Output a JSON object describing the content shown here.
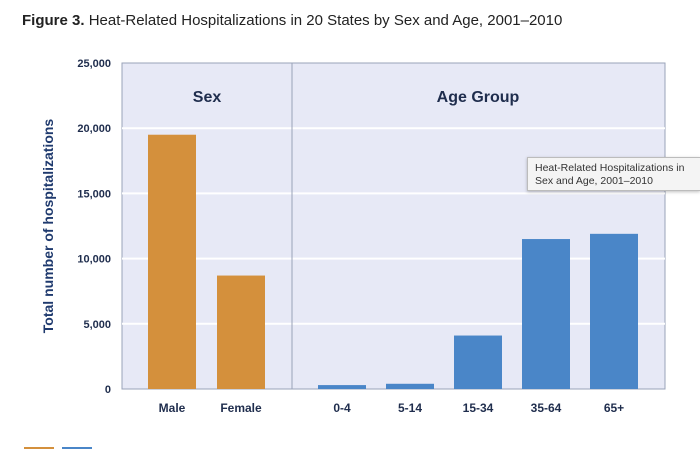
{
  "figure": {
    "label": "Figure 3.",
    "title": "Heat-Related Hospitalizations in 20 States by Sex and Age, 2001–2010"
  },
  "tooltip": {
    "line1": "Heat-Related Hospitalizations in",
    "line2": "Sex and Age, 2001–2010"
  },
  "colors": {
    "sex_bars": "#d4903c",
    "age_bars": "#4a86c8",
    "plot_background": "#e7e9f6",
    "gridline": "#ffffff",
    "panel_border": "#9aa3b8"
  },
  "chart_data": {
    "type": "bar",
    "ylabel": "Total number of hospitalizations",
    "ylim": [
      0,
      25000
    ],
    "y_ticks": [
      0,
      5000,
      10000,
      15000,
      20000,
      25000
    ],
    "y_tick_labels": [
      "0",
      "5,000",
      "10,000",
      "15,000",
      "20,000",
      "25,000"
    ],
    "grid": true,
    "panels": [
      {
        "title": "Sex",
        "categories": [
          "Male",
          "Female"
        ],
        "values": [
          19500,
          8700
        ],
        "color": "#d4903c"
      },
      {
        "title": "Age Group",
        "categories": [
          "0-4",
          "5-14",
          "15-34",
          "35-64",
          "65+"
        ],
        "values": [
          300,
          400,
          4100,
          11500,
          11900
        ],
        "color": "#4a86c8"
      }
    ]
  }
}
